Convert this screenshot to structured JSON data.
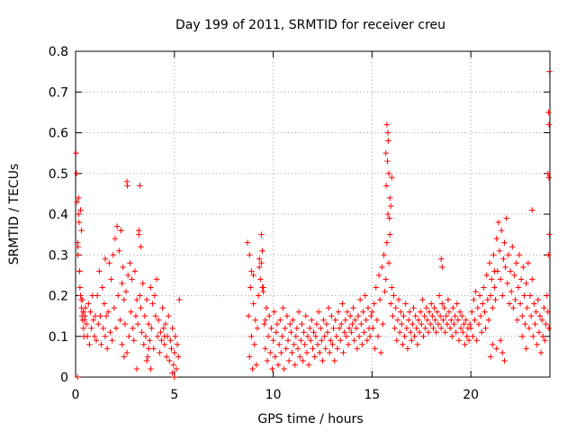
{
  "chart_data": {
    "type": "scatter",
    "title": "Day 199 of 2011, SRMTID for receiver creu",
    "xlabel": "GPS time / hours",
    "ylabel": "SRMTID / TECUs",
    "xlim": [
      0,
      24
    ],
    "ylim": [
      0,
      0.8
    ],
    "xticks": [
      0,
      5,
      10,
      15,
      20
    ],
    "yticks": [
      0,
      0.1,
      0.2,
      0.3,
      0.4,
      0.5,
      0.6,
      0.7,
      0.8
    ],
    "grid": true,
    "marker": "plus",
    "color": "#ff0000",
    "series": [
      {
        "x": [
          0.02,
          0.05,
          0.08,
          0.1,
          0.12,
          0.15,
          0.18,
          0.2,
          0.22,
          0.25,
          0.28,
          0.3,
          0.32,
          0.35,
          0.38,
          0.4,
          0.42,
          0.45,
          0.48,
          0.5,
          0.55,
          0.6,
          0.65,
          0.7,
          0.75,
          0.8,
          0.85,
          0.9,
          0.95,
          1.0,
          1.05,
          1.1,
          1.15,
          1.2,
          1.25,
          1.3,
          1.35,
          1.4,
          1.45,
          1.5,
          1.55,
          1.6,
          1.65,
          1.7,
          1.75,
          1.8,
          1.85,
          1.9,
          1.95,
          2.0,
          2.05,
          2.1,
          2.15,
          2.2,
          2.25,
          2.3,
          2.35,
          2.4,
          2.45,
          2.5,
          2.55,
          2.6,
          2.65,
          2.7,
          2.75,
          2.8,
          2.85,
          2.9,
          2.95,
          3.0,
          3.05,
          3.1,
          3.15,
          3.2,
          3.25,
          3.3,
          3.35,
          3.4,
          3.45,
          3.5,
          3.55,
          3.6,
          3.65,
          3.7,
          3.75,
          3.8,
          3.85,
          3.9,
          3.95,
          4.0,
          4.05,
          4.1,
          4.15,
          4.2,
          4.25,
          4.3,
          4.35,
          4.4,
          4.45,
          4.5,
          4.55,
          4.6,
          4.65,
          4.7,
          4.75,
          4.8,
          4.85,
          4.9,
          4.95,
          5.0,
          5.05,
          5.1,
          5.15,
          5.2,
          5.25,
          2.6,
          2.62,
          3.25,
          0.1,
          0.12,
          0.15,
          0.2,
          0.25,
          0.3,
          0.35,
          0.4,
          1.5,
          2.3,
          2.35,
          2.45,
          3.1,
          3.2,
          3.3,
          3.6,
          3.7,
          3.8,
          4.5,
          4.9,
          5.0
        ],
        "y": [
          0.55,
          0.5,
          0.43,
          0.33,
          0.3,
          0.4,
          0.38,
          0.26,
          0.22,
          0.2,
          0.19,
          0.17,
          0.15,
          0.14,
          0.16,
          0.12,
          0.1,
          0.14,
          0.15,
          0.17,
          0.13,
          0.1,
          0.18,
          0.08,
          0.16,
          0.12,
          0.2,
          0.14,
          0.1,
          0.15,
          0.09,
          0.2,
          0.13,
          0.26,
          0.15,
          0.08,
          0.22,
          0.12,
          0.18,
          0.1,
          0.15,
          0.07,
          0.16,
          0.28,
          0.11,
          0.24,
          0.09,
          0.3,
          0.17,
          0.34,
          0.12,
          0.37,
          0.2,
          0.31,
          0.14,
          0.36,
          0.08,
          0.27,
          0.19,
          0.13,
          0.21,
          0.06,
          0.25,
          0.1,
          0.28,
          0.16,
          0.24,
          0.12,
          0.09,
          0.26,
          0.15,
          0.19,
          0.13,
          0.35,
          0.2,
          0.17,
          0.11,
          0.23,
          0.08,
          0.15,
          0.1,
          0.19,
          0.05,
          0.13,
          0.09,
          0.22,
          0.12,
          0.18,
          0.07,
          0.2,
          0.15,
          0.24,
          0.1,
          0.14,
          0.06,
          0.11,
          0.09,
          0.17,
          0.12,
          0.08,
          0.13,
          0.05,
          0.1,
          0.15,
          0.04,
          0.09,
          0.07,
          0.12,
          0.03,
          0.06,
          0.1,
          0.02,
          0.08,
          0.05,
          0.19,
          0.48,
          0.47,
          0.47,
          0.0,
          0.32,
          0.44,
          0.26,
          0.41,
          0.36,
          0.19,
          0.16,
          0.29,
          0.36,
          0.23,
          0.05,
          0.02,
          0.36,
          0.32,
          0.04,
          0.07,
          0.02,
          0.1,
          0.01,
          0.0
        ]
      },
      {
        "x": [
          8.7,
          8.75,
          8.8,
          8.85,
          8.9,
          8.95,
          9.0,
          9.05,
          9.1,
          9.15,
          9.2,
          9.25,
          9.3,
          9.35,
          9.4,
          9.45,
          9.5,
          9.55,
          9.6,
          9.65,
          9.7,
          9.75,
          9.8,
          9.85,
          9.9,
          9.95,
          10.0,
          10.05,
          10.1,
          10.15,
          10.2,
          10.25,
          10.3,
          10.35,
          10.4,
          10.45,
          10.5,
          10.55,
          10.6,
          10.65,
          10.7,
          10.75,
          10.8,
          10.85,
          10.9,
          10.95,
          11.0,
          11.05,
          11.1,
          11.15,
          11.2,
          11.25,
          11.3,
          11.35,
          11.4,
          11.45,
          11.5,
          11.55,
          11.6,
          11.65,
          11.7,
          11.75,
          11.8,
          11.85,
          11.9,
          11.95,
          12.0,
          12.05,
          12.1,
          12.15,
          12.2,
          12.25,
          12.3,
          12.35,
          12.4,
          12.45,
          12.5,
          12.55,
          12.6,
          12.65,
          12.7,
          12.75,
          12.8,
          12.85,
          12.9,
          12.95,
          13.0,
          13.05,
          13.1,
          13.15,
          13.2,
          13.25,
          13.3,
          13.35,
          13.4,
          13.45,
          13.5,
          13.55,
          13.6,
          13.65,
          13.7,
          13.75,
          13.8,
          13.85,
          13.9,
          13.95,
          14.0,
          14.05,
          14.1,
          14.15,
          14.2,
          14.25,
          14.3,
          14.35,
          14.4,
          14.45,
          14.5,
          14.55,
          14.6,
          14.65,
          14.7,
          14.75,
          14.8,
          14.85,
          14.9,
          14.95,
          8.8,
          9.3,
          9.4,
          9.45,
          8.9,
          9.0,
          9.5,
          9.6
        ],
        "y": [
          0.33,
          0.15,
          0.05,
          0.22,
          0.1,
          0.02,
          0.18,
          0.08,
          0.14,
          0.03,
          0.12,
          0.2,
          0.29,
          0.24,
          0.35,
          0.31,
          0.22,
          0.13,
          0.07,
          0.17,
          0.04,
          0.1,
          0.15,
          0.06,
          0.12,
          0.02,
          0.09,
          0.16,
          0.05,
          0.11,
          0.13,
          0.03,
          0.08,
          0.14,
          0.06,
          0.1,
          0.17,
          0.02,
          0.12,
          0.07,
          0.15,
          0.09,
          0.04,
          0.13,
          0.11,
          0.06,
          0.14,
          0.08,
          0.03,
          0.1,
          0.12,
          0.07,
          0.16,
          0.05,
          0.09,
          0.13,
          0.04,
          0.11,
          0.08,
          0.15,
          0.06,
          0.1,
          0.03,
          0.12,
          0.09,
          0.14,
          0.07,
          0.11,
          0.05,
          0.1,
          0.13,
          0.08,
          0.16,
          0.06,
          0.12,
          0.09,
          0.04,
          0.14,
          0.1,
          0.07,
          0.13,
          0.11,
          0.17,
          0.06,
          0.09,
          0.15,
          0.08,
          0.12,
          0.04,
          0.14,
          0.1,
          0.07,
          0.16,
          0.12,
          0.09,
          0.13,
          0.18,
          0.06,
          0.11,
          0.14,
          0.1,
          0.16,
          0.08,
          0.12,
          0.15,
          0.11,
          0.13,
          0.17,
          0.09,
          0.14,
          0.12,
          0.07,
          0.15,
          0.1,
          0.19,
          0.13,
          0.08,
          0.16,
          0.11,
          0.2,
          0.14,
          0.09,
          0.17,
          0.12,
          0.1,
          0.15,
          0.3,
          0.27,
          0.28,
          0.22,
          0.26,
          0.25,
          0.21,
          0.14
        ]
      },
      {
        "x": [
          15.0,
          15.05,
          15.1,
          15.15,
          15.2,
          15.25,
          15.3,
          15.35,
          15.4,
          15.45,
          15.5,
          15.55,
          15.6,
          15.65,
          15.7,
          15.75,
          15.8,
          15.85,
          15.9,
          15.95,
          16.0,
          16.05,
          16.1,
          16.15,
          16.2,
          16.25,
          16.3,
          16.35,
          16.4,
          16.45,
          16.5,
          16.55,
          16.6,
          16.65,
          16.7,
          16.75,
          16.8,
          16.85,
          16.9,
          16.95,
          17.0,
          17.05,
          17.1,
          17.15,
          17.2,
          17.25,
          17.3,
          17.35,
          17.4,
          17.45,
          17.5,
          17.55,
          17.6,
          17.65,
          17.7,
          17.75,
          17.8,
          17.85,
          17.9,
          17.95,
          18.0,
          18.05,
          18.1,
          18.15,
          18.2,
          18.25,
          18.3,
          18.35,
          18.4,
          18.45,
          18.5,
          18.55,
          18.6,
          18.65,
          18.7,
          18.75,
          18.8,
          18.85,
          18.9,
          18.95,
          19.0,
          19.05,
          19.1,
          19.15,
          19.2,
          19.25,
          19.3,
          19.35,
          19.4,
          19.45,
          19.5,
          19.55,
          19.6,
          19.65,
          19.7,
          19.75,
          19.8,
          19.85,
          19.9,
          19.95,
          15.7,
          15.75,
          15.8,
          15.85,
          15.9,
          15.95,
          16.0,
          15.72,
          15.78,
          15.82,
          15.88,
          18.5,
          18.55
        ],
        "y": [
          0.16,
          0.12,
          0.18,
          0.07,
          0.22,
          0.14,
          0.1,
          0.25,
          0.19,
          0.06,
          0.27,
          0.13,
          0.3,
          0.21,
          0.24,
          0.33,
          0.4,
          0.28,
          0.35,
          0.18,
          0.22,
          0.15,
          0.2,
          0.12,
          0.17,
          0.09,
          0.14,
          0.19,
          0.11,
          0.16,
          0.13,
          0.08,
          0.15,
          0.1,
          0.18,
          0.12,
          0.07,
          0.14,
          0.16,
          0.11,
          0.09,
          0.13,
          0.17,
          0.1,
          0.15,
          0.12,
          0.08,
          0.14,
          0.11,
          0.16,
          0.13,
          0.19,
          0.1,
          0.15,
          0.12,
          0.17,
          0.14,
          0.11,
          0.16,
          0.13,
          0.18,
          0.15,
          0.12,
          0.17,
          0.14,
          0.11,
          0.16,
          0.13,
          0.2,
          0.15,
          0.12,
          0.18,
          0.14,
          0.17,
          0.11,
          0.15,
          0.13,
          0.19,
          0.16,
          0.12,
          0.14,
          0.1,
          0.17,
          0.13,
          0.15,
          0.11,
          0.18,
          0.14,
          0.09,
          0.16,
          0.12,
          0.15,
          0.11,
          0.13,
          0.08,
          0.14,
          0.1,
          0.12,
          0.09,
          0.13,
          0.55,
          0.62,
          0.6,
          0.5,
          0.44,
          0.42,
          0.49,
          0.47,
          0.53,
          0.58,
          0.39,
          0.29,
          0.27
        ]
      },
      {
        "x": [
          20.0,
          20.05,
          20.1,
          20.15,
          20.2,
          20.25,
          20.3,
          20.35,
          20.4,
          20.45,
          20.5,
          20.55,
          20.6,
          20.65,
          20.7,
          20.75,
          20.8,
          20.85,
          20.9,
          20.95,
          21.0,
          21.05,
          21.1,
          21.15,
          21.2,
          21.25,
          21.3,
          21.35,
          21.4,
          21.45,
          21.5,
          21.55,
          21.6,
          21.65,
          21.7,
          21.75,
          21.8,
          21.85,
          21.9,
          21.95,
          22.0,
          22.05,
          22.1,
          22.15,
          22.2,
          22.25,
          22.3,
          22.35,
          22.4,
          22.45,
          22.5,
          22.55,
          22.6,
          22.65,
          22.7,
          22.75,
          22.8,
          22.85,
          22.9,
          22.95,
          23.0,
          23.05,
          23.1,
          23.15,
          23.2,
          23.25,
          23.3,
          23.35,
          23.4,
          23.45,
          23.5,
          23.55,
          23.6,
          23.65,
          23.7,
          23.75,
          23.8,
          23.85,
          23.9,
          23.95,
          23.98,
          23.93,
          23.96,
          23.9,
          23.95,
          23.97,
          23.92,
          21.0,
          21.1,
          21.2,
          21.3,
          21.5,
          21.6,
          21.7,
          22.6,
          22.8,
          23.1
        ],
        "y": [
          0.12,
          0.16,
          0.1,
          0.19,
          0.14,
          0.21,
          0.09,
          0.17,
          0.13,
          0.2,
          0.15,
          0.11,
          0.18,
          0.22,
          0.16,
          0.12,
          0.25,
          0.19,
          0.14,
          0.28,
          0.2,
          0.24,
          0.17,
          0.3,
          0.22,
          0.19,
          0.34,
          0.26,
          0.38,
          0.31,
          0.24,
          0.36,
          0.2,
          0.29,
          0.33,
          0.27,
          0.39,
          0.23,
          0.3,
          0.18,
          0.26,
          0.21,
          0.32,
          0.17,
          0.25,
          0.19,
          0.28,
          0.14,
          0.22,
          0.3,
          0.18,
          0.24,
          0.15,
          0.27,
          0.2,
          0.13,
          0.23,
          0.17,
          0.28,
          0.12,
          0.2,
          0.15,
          0.24,
          0.1,
          0.18,
          0.13,
          0.16,
          0.08,
          0.19,
          0.11,
          0.15,
          0.06,
          0.14,
          0.1,
          0.17,
          0.09,
          0.13,
          0.2,
          0.16,
          0.12,
          0.75,
          0.65,
          0.62,
          0.5,
          0.49,
          0.35,
          0.3,
          0.05,
          0.08,
          0.26,
          0.07,
          0.09,
          0.06,
          0.04,
          0.1,
          0.07,
          0.41
        ]
      }
    ]
  }
}
